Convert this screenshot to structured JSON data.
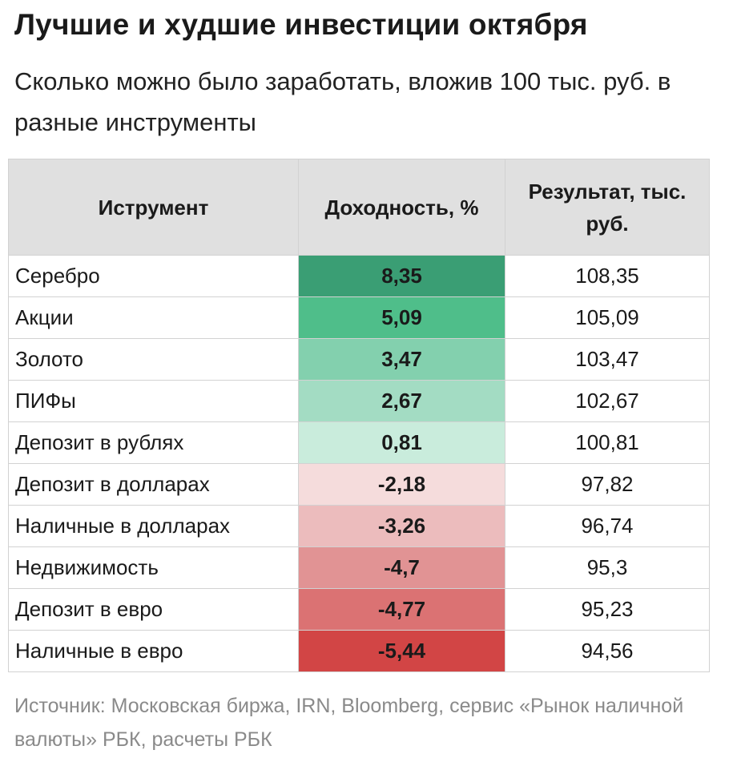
{
  "title": "Лучшие и худшие инвестиции октября",
  "subtitle": "Сколько можно было заработать, вложив 100 тыс. руб. в разные инструменты",
  "table": {
    "headers": [
      "Иструмент",
      "Доходность, %",
      "Результат, тыс. руб."
    ],
    "rows": [
      {
        "name": "Серебро",
        "yield": "8,35",
        "result": "108,35",
        "color": "#3a9e74"
      },
      {
        "name": "Акции",
        "yield": "5,09",
        "result": "105,09",
        "color": "#4fbe8a"
      },
      {
        "name": "Золото",
        "yield": "3,47",
        "result": "103,47",
        "color": "#83d0ae"
      },
      {
        "name": "ПИФы",
        "yield": "2,67",
        "result": "102,67",
        "color": "#a3dcc3"
      },
      {
        "name": "Депозит в рублях",
        "yield": "0,81",
        "result": "100,81",
        "color": "#c9ecdc"
      },
      {
        "name": "Депозит в долларах",
        "yield": "-2,18",
        "result": "97,82",
        "color": "#f5dcdc"
      },
      {
        "name": "Наличные в долларах",
        "yield": "-3,26",
        "result": "96,74",
        "color": "#ecbcbd"
      },
      {
        "name": "Недвижимость",
        "yield": "-4,7",
        "result": "95,3",
        "color": "#e19394"
      },
      {
        "name": "Депозит в евро",
        "yield": "-4,77",
        "result": "95,23",
        "color": "#db7273"
      },
      {
        "name": "Наличные в евро",
        "yield": "-5,44",
        "result": "94,56",
        "color": "#d24545"
      }
    ]
  },
  "source": "Источник: Московская биржа, IRN, Bloomberg, сервис «Рынок наличной валюты» РБК, расчеты РБК"
}
